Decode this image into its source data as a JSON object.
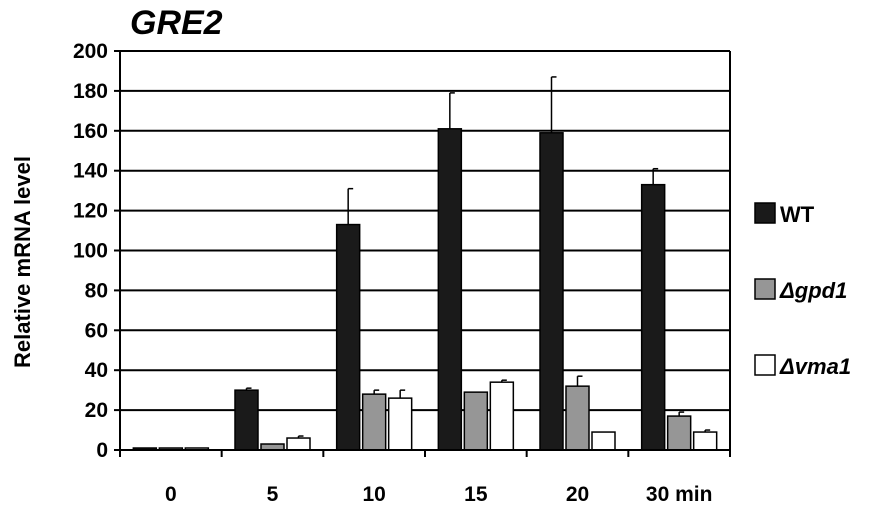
{
  "chart_data": {
    "type": "bar",
    "title": "GRE2",
    "xlabel": "",
    "ylabel": "Relative mRNA level",
    "categories": [
      "0",
      "5",
      "10",
      "15",
      "20",
      "30 min"
    ],
    "ylim": [
      0,
      200
    ],
    "yticks": [
      0,
      20,
      40,
      60,
      80,
      100,
      120,
      140,
      160,
      180,
      200
    ],
    "grid": true,
    "legend_position": "right",
    "series": [
      {
        "name": "WT",
        "prefix": "",
        "italic_name": false,
        "color": "#1a1a1a",
        "values": [
          1,
          30,
          113,
          161,
          159,
          133
        ],
        "errors": [
          0,
          1,
          18,
          18,
          28,
          8
        ]
      },
      {
        "name": "gpd1",
        "prefix": "Δ",
        "italic_name": true,
        "color": "#969696",
        "values": [
          1,
          3,
          28,
          29,
          32,
          17
        ],
        "errors": [
          0,
          0,
          2,
          0,
          5,
          2
        ]
      },
      {
        "name": "vma1",
        "prefix": "Δ",
        "italic_name": true,
        "color": "#ffffff",
        "values": [
          1,
          6,
          26,
          34,
          9,
          9
        ],
        "errors": [
          0,
          1,
          4,
          1,
          0,
          1
        ]
      }
    ]
  }
}
